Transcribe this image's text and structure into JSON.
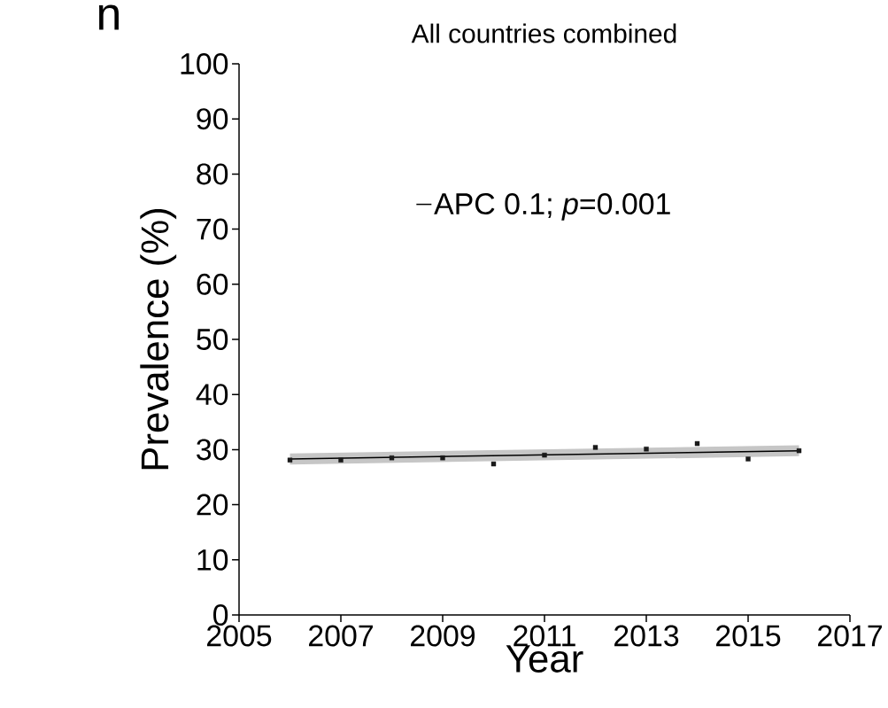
{
  "chart_data": {
    "type": "scatter",
    "title": "All countries combined",
    "xlabel": "Year",
    "ylabel": "Prevalence (%)",
    "annotations": [
      "n"
    ],
    "xlim": [
      2005,
      2017
    ],
    "xticks": [
      2005,
      2007,
      2009,
      2011,
      2013,
      2015,
      2017
    ],
    "ylim": [
      0,
      100
    ],
    "yticks": [
      0,
      10,
      20,
      30,
      40,
      50,
      60,
      70,
      80,
      90,
      100
    ],
    "grid": false,
    "legend": "top",
    "marker": "square",
    "series": [
      {
        "color": "#1a1a1a",
        "x": [
          2006,
          2007,
          2008,
          2009,
          2010,
          2011,
          2012,
          2013,
          2014,
          2015,
          2016
        ],
        "values": [
          28.1,
          28.1,
          28.5,
          28.5,
          27.4,
          29.0,
          30.4,
          30.1,
          31.1,
          28.3,
          29.8
        ]
      },
      {
        "type": "line",
        "name": "APC 0.1; *p*=0.001",
        "color": "#000000",
        "marker": "none",
        "line_style": "solid",
        "x": [
          2006,
          2016
        ],
        "values": [
          28.3,
          29.8
        ],
        "lower": [
          27.3,
          28.8
        ],
        "upper": [
          29.3,
          30.8
        ]
      }
    ]
  }
}
